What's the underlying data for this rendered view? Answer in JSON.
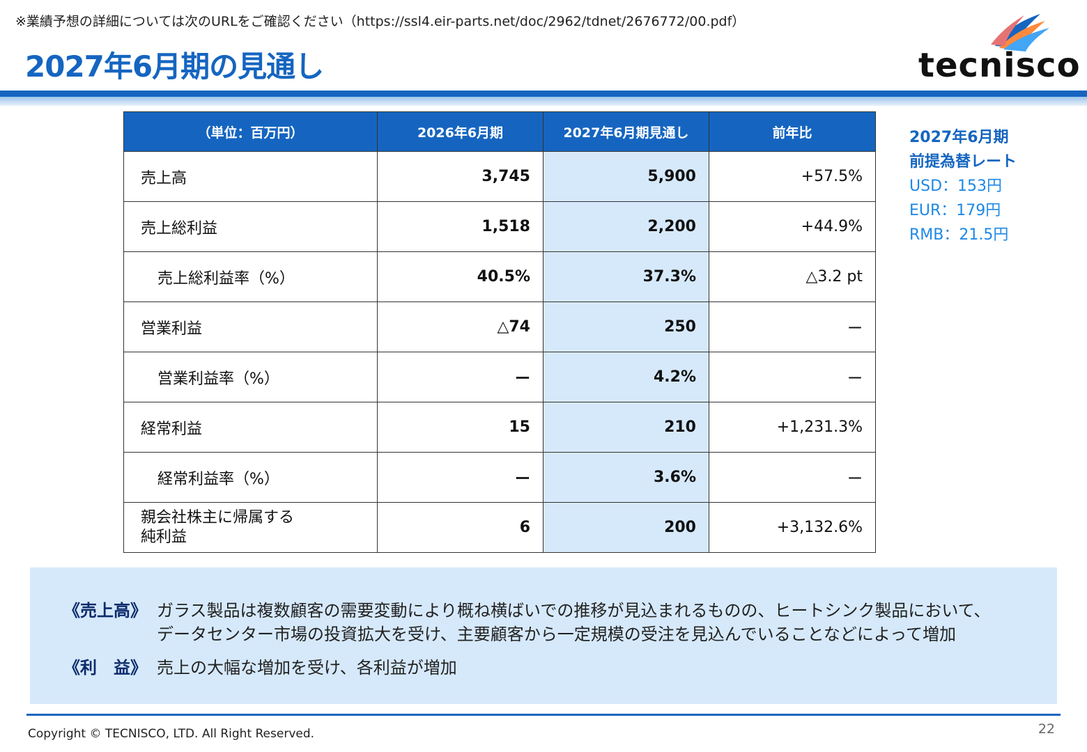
{
  "header": {
    "note": "※業績予想の詳細については次のURLをご確認ください（https://ssl4.eir-parts.net/doc/2962/tdnet/2676772/00.pdf）",
    "title": "2027年6月期の見通し",
    "logo_text": "tecnisco"
  },
  "table": {
    "columns": [
      "（単位：百万円）",
      "2026年6月期",
      "2027年6月期見通し",
      "前年比"
    ],
    "rows": [
      {
        "label": "売上高",
        "fy2026": "3,745",
        "fy2027": "5,900",
        "yoy": "+57.5%"
      },
      {
        "label": "売上総利益",
        "fy2026": "1,518",
        "fy2027": "2,200",
        "yoy": "+44.9%"
      },
      {
        "label": "売上総利益率（%）",
        "fy2026": "40.5%",
        "fy2027": "37.3%",
        "yoy": "△3.2 pt"
      },
      {
        "label": "営業利益",
        "fy2026": "△74",
        "fy2027": "250",
        "yoy": "ー"
      },
      {
        "label": "営業利益率（%）",
        "fy2026": "ー",
        "fy2027": "4.2%",
        "yoy": "ー"
      },
      {
        "label": "経常利益",
        "fy2026": "15",
        "fy2027": "210",
        "yoy": "+1,231.3%"
      },
      {
        "label": "経常利益率（%）",
        "fy2026": "ー",
        "fy2027": "3.6%",
        "yoy": "ー"
      },
      {
        "label_line1": "親会社株主に帰属する",
        "label_line2": "純利益",
        "fy2026": "6",
        "fy2027": "200",
        "yoy": "+3,132.6%"
      }
    ]
  },
  "fx_rates": {
    "title_line1": "2027年6月期",
    "title_line2": "前提為替レート",
    "usd": "USD：153円",
    "eur": "EUR：179円",
    "rmb": "RMB：21.5円"
  },
  "summary": {
    "sales_tag": "《売上高》",
    "sales_line1": "ガラス製品は複数顧客の需要変動により概ね横ばいでの推移が見込まれるものの、ヒートシンク製品において、",
    "sales_line2": "データセンター市場の投資拡大を受け、主要顧客から一定規模の受注を見込んでいることなどによって増加",
    "profit_tag": "《利　益》",
    "profit_text": "売上の大幅な増加を受け、各利益が増加"
  },
  "footer": {
    "copyright": "Copyright © TECNISCO, LTD. All Right Reserved.",
    "page_number": "22"
  },
  "colors": {
    "accent": "#1565c0",
    "highlight": "#d6e9fb",
    "summary_bg": "#d6e9fb"
  }
}
